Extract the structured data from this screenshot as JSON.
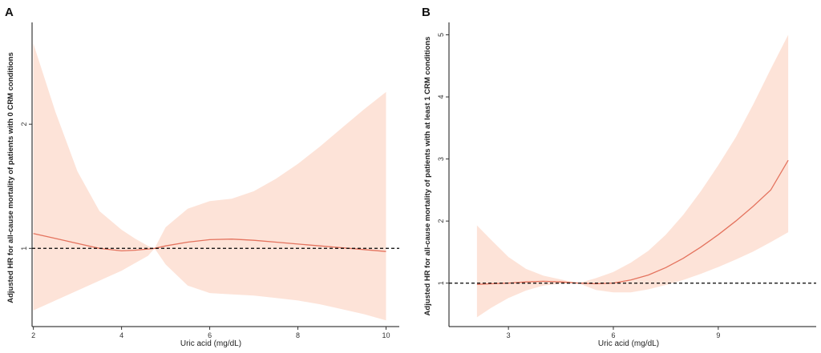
{
  "chart_data": [
    {
      "type": "line",
      "panel_label": "A",
      "xlabel": "Uric acid (mg/dL)",
      "ylabel": "Adjusted HR for all-cause mortality of patients with 0 CRM conditions",
      "xlim": [
        1.97,
        10.3
      ],
      "ylim": [
        0.37,
        2.82
      ],
      "xticks": [
        2,
        4,
        6,
        8,
        10
      ],
      "yticks": [
        1,
        2
      ],
      "reference_line": 1,
      "colors": {
        "line": "#e4735e",
        "band": "#fde3d8",
        "reference": "#000000"
      },
      "series": [
        {
          "x": [
            2.0,
            2.5,
            3.0,
            3.5,
            4.0,
            4.3,
            4.6,
            4.75,
            5.0,
            5.5,
            6.0,
            6.5,
            7.0,
            7.5,
            8.0,
            8.5,
            9.0,
            9.5,
            10.0
          ],
          "y": [
            1.12,
            1.08,
            1.04,
            1.0,
            0.98,
            0.985,
            0.995,
            1.0,
            1.02,
            1.05,
            1.07,
            1.075,
            1.065,
            1.05,
            1.035,
            1.02,
            1.005,
            0.99,
            0.975
          ],
          "lower": [
            0.5,
            0.58,
            0.66,
            0.74,
            0.82,
            0.88,
            0.94,
            1.0,
            0.87,
            0.7,
            0.64,
            0.63,
            0.62,
            0.6,
            0.58,
            0.55,
            0.51,
            0.47,
            0.42
          ],
          "upper": [
            2.65,
            2.1,
            1.62,
            1.3,
            1.15,
            1.08,
            1.02,
            1.0,
            1.17,
            1.32,
            1.38,
            1.4,
            1.46,
            1.56,
            1.68,
            1.82,
            1.97,
            2.12,
            2.26
          ]
        }
      ]
    },
    {
      "type": "line",
      "panel_label": "B",
      "xlabel": "Uric acid (mg/dL)",
      "ylabel": "Adjusted HR for all-cause mortality of patients with at least 1 CRM conditions",
      "xlim": [
        1.3,
        11.8
      ],
      "ylim": [
        0.3,
        5.2
      ],
      "xticks": [
        3,
        6,
        9
      ],
      "yticks": [
        1,
        2,
        3,
        4,
        5
      ],
      "reference_line": 1,
      "colors": {
        "line": "#e4735e",
        "band": "#fde3d8",
        "reference": "#000000"
      },
      "series": [
        {
          "x": [
            2.1,
            2.5,
            3.0,
            3.5,
            4.0,
            4.5,
            5.0,
            5.5,
            6.0,
            6.5,
            7.0,
            7.5,
            8.0,
            8.5,
            9.0,
            9.5,
            10.0,
            10.5,
            11.0
          ],
          "y": [
            0.98,
            0.99,
            1.0,
            1.02,
            1.03,
            1.02,
            1.0,
            0.99,
            1.0,
            1.05,
            1.13,
            1.25,
            1.4,
            1.58,
            1.78,
            2.0,
            2.24,
            2.5,
            2.98
          ],
          "lower": [
            0.45,
            0.6,
            0.76,
            0.88,
            0.96,
            0.99,
            1.0,
            0.89,
            0.85,
            0.85,
            0.9,
            0.97,
            1.05,
            1.15,
            1.26,
            1.38,
            1.51,
            1.66,
            1.82
          ],
          "upper": [
            1.93,
            1.7,
            1.42,
            1.23,
            1.12,
            1.06,
            1.0,
            1.08,
            1.18,
            1.33,
            1.52,
            1.78,
            2.1,
            2.48,
            2.9,
            3.35,
            3.88,
            4.45,
            5.0
          ]
        }
      ]
    }
  ]
}
